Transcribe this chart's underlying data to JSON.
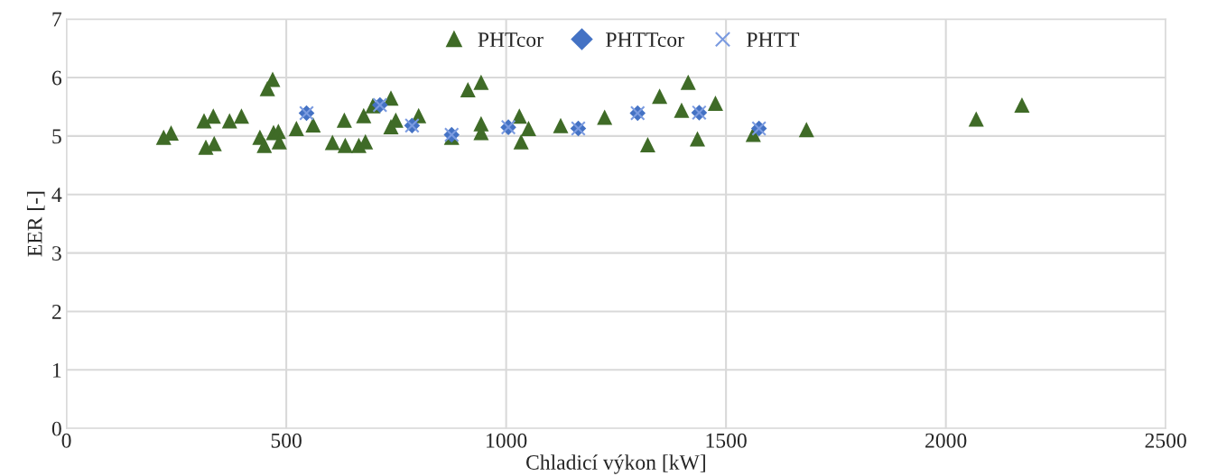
{
  "chart_data": {
    "type": "scatter",
    "xlabel": "Chladicí výkon [kW]",
    "ylabel": "EER [-]",
    "xlim": [
      0,
      2500
    ],
    "xticks": [
      0,
      500,
      1000,
      1500,
      2000,
      2500
    ],
    "ylim": [
      0,
      7
    ],
    "yticks": [
      0,
      1,
      2,
      3,
      4,
      5,
      6,
      7
    ],
    "grid": true,
    "legend": "top",
    "series": [
      {
        "name": "PHTcor",
        "color": "#3f6b27",
        "marker": "triangle",
        "x": [
          221,
          238,
          313,
          317,
          334,
          336,
          371,
          398,
          440,
          450,
          457,
          469,
          471,
          482,
          484,
          523,
          561,
          605,
          632,
          634,
          665,
          680,
          676,
          697,
          738,
          738,
          749,
          801,
          876,
          913,
          943,
          943,
          943,
          1030,
          1034,
          1051,
          1122,
          1124,
          1224,
          1322,
          1349,
          1414,
          1399,
          1435,
          1476,
          1562,
          1683,
          2069,
          2173
        ],
        "values": [
          4.98,
          5.05,
          5.26,
          4.81,
          5.34,
          4.87,
          5.26,
          5.34,
          4.98,
          4.84,
          5.81,
          5.97,
          5.06,
          5.08,
          4.9,
          5.13,
          5.19,
          4.89,
          5.27,
          4.84,
          4.84,
          4.9,
          5.35,
          5.52,
          5.65,
          5.16,
          5.27,
          5.35,
          4.98,
          5.79,
          5.92,
          5.21,
          5.06,
          5.34,
          4.9,
          5.13,
          null,
          5.18,
          5.32,
          4.85,
          5.68,
          5.92,
          5.44,
          4.95,
          5.56,
          5.03,
          5.11,
          5.29,
          5.53
        ]
      },
      {
        "name": "PHTTcor",
        "color": "#4472c4",
        "marker": "diamond",
        "x": [
          546,
          713,
          786,
          876,
          1005,
          1164,
          1299,
          1439,
          1575
        ],
        "values": [
          5.39,
          5.53,
          5.18,
          5.02,
          5.15,
          5.13,
          5.39,
          5.4,
          5.13
        ]
      },
      {
        "name": "PHTT",
        "color": "#7b9be0",
        "marker": "cross",
        "x": [
          546,
          713,
          786,
          876,
          1005,
          1164,
          1299,
          1439,
          1575
        ],
        "values": [
          5.39,
          5.53,
          5.18,
          5.02,
          5.15,
          5.13,
          5.39,
          5.4,
          5.13
        ]
      }
    ]
  }
}
